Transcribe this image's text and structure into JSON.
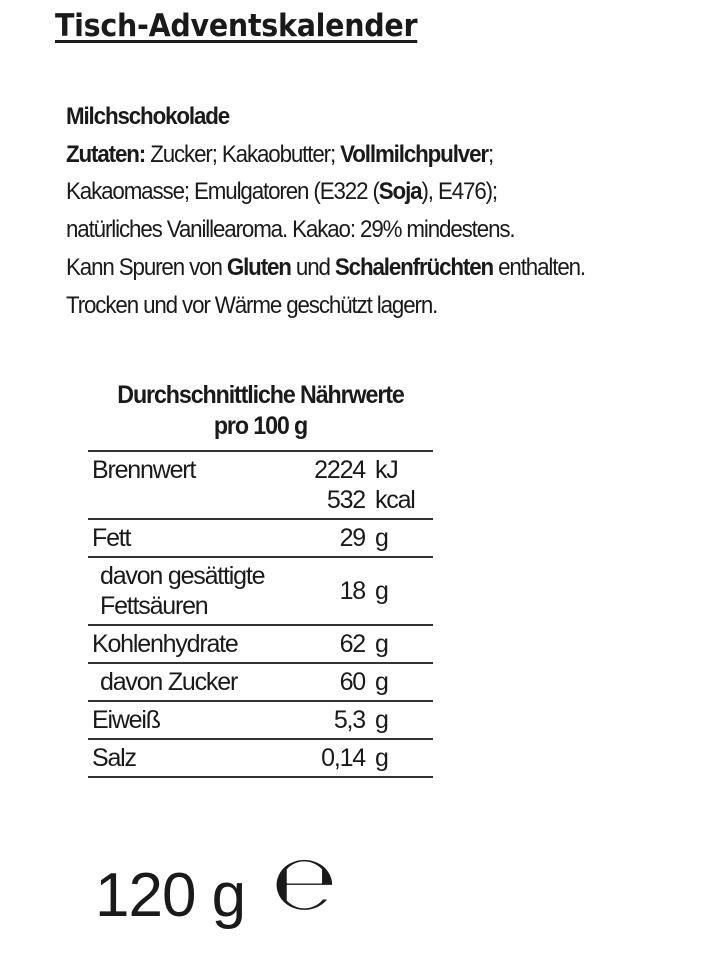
{
  "title": "Tisch-Adventskalender",
  "product": "Milchschokolade",
  "ingredients": {
    "label": "Zutaten:",
    "p1": " Zucker; Kakaobutter; ",
    "b1": "Vollmilchpulver",
    "p2": ";",
    "p3": "Kakaomasse; Emulgatoren (E322 (",
    "b2": "Soja",
    "p4": "), E476);",
    "p5": "natürliches Vanillearoma. Kakao: 29% mindestens.",
    "p6": "Kann Spuren von ",
    "b3": "Gluten",
    "p7": " und ",
    "b4": "Schalenfrüchten",
    "p8": " enthalten.",
    "storage": "Trocken und vor Wärme geschützt lagern."
  },
  "nutrition": {
    "heading": "Durchschnittliche Nährwerte",
    "subheading": "pro 100 g",
    "rows": [
      {
        "label": "Brennwert",
        "value": "2224",
        "unit": "kJ",
        "value2": "532",
        "unit2": "kcal"
      },
      {
        "label": "Fett",
        "value": "29",
        "unit": "g"
      },
      {
        "label": "davon gesättigte",
        "label2": "Fettsäuren",
        "value": "18",
        "unit": "g"
      },
      {
        "label": "Kohlenhydrate",
        "value": "62",
        "unit": "g"
      },
      {
        "label": "davon Zucker",
        "value": "60",
        "unit": "g"
      },
      {
        "label": "Eiweiß",
        "value": "5,3",
        "unit": "g"
      },
      {
        "label": "Salz",
        "value": "0,14",
        "unit": "g"
      }
    ]
  },
  "net_weight": "120 g",
  "estimated_sign": "℮"
}
